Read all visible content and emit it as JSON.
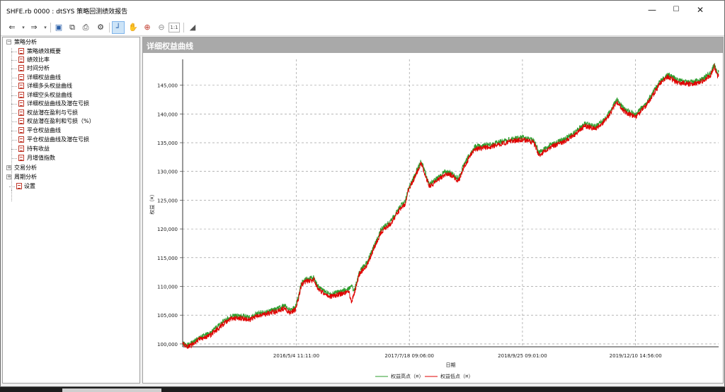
{
  "window": {
    "title": "SHFE.rb 0000 : dtSYS 策略回测绩效报告",
    "controls": {
      "minimize": "—",
      "maximize": "☐",
      "close": "✕"
    }
  },
  "toolbar": {
    "items": [
      {
        "name": "back-icon",
        "glyph": "⇐"
      },
      {
        "name": "back-dropdown-icon",
        "glyph": "▾"
      },
      {
        "name": "forward-icon",
        "glyph": "⇒"
      },
      {
        "name": "forward-dropdown-icon",
        "glyph": "▾"
      },
      {
        "name": "save-icon",
        "glyph": "▣"
      },
      {
        "name": "copy-icon",
        "glyph": "⧉"
      },
      {
        "name": "print-icon",
        "glyph": "⎙"
      },
      {
        "name": "settings-icon",
        "glyph": "⚙"
      },
      {
        "name": "cursor-select-icon",
        "glyph": "┘"
      },
      {
        "name": "pan-hand-icon",
        "glyph": "✋"
      },
      {
        "name": "zoom-in-icon",
        "glyph": "⊕"
      },
      {
        "name": "zoom-out-icon",
        "glyph": "⊖"
      },
      {
        "name": "zoom-actual-size-icon",
        "glyph": "1:1"
      },
      {
        "name": "zoom-fit-icon",
        "glyph": "◢"
      }
    ]
  },
  "tree": {
    "nodes": [
      {
        "label": "策略分析",
        "type": "group",
        "expanded": true
      },
      {
        "label": "策略绩效概要",
        "type": "report"
      },
      {
        "label": "绩效比率",
        "type": "report"
      },
      {
        "label": "时间分析",
        "type": "report"
      },
      {
        "label": "详细权益曲线",
        "type": "report",
        "selected": true
      },
      {
        "label": "详细多头权益曲线",
        "type": "report"
      },
      {
        "label": "详细空头权益曲线",
        "type": "report"
      },
      {
        "label": "详细权益曲线及潜在亏损",
        "type": "report"
      },
      {
        "label": "权益潜在盈利与亏损",
        "type": "report"
      },
      {
        "label": "权益潜在盈利和亏损（%）",
        "type": "report"
      },
      {
        "label": "平仓权益曲线",
        "type": "report"
      },
      {
        "label": "平仓权益曲线及潜在亏损",
        "type": "report"
      },
      {
        "label": "持有收益",
        "type": "report"
      },
      {
        "label": "月增值指数",
        "type": "report"
      },
      {
        "label": "交易分析",
        "type": "group",
        "expanded": false
      },
      {
        "label": "周期分析",
        "type": "group",
        "expanded": false
      },
      {
        "label": "设置",
        "type": "report"
      }
    ]
  },
  "chart_panel": {
    "header": "详细权益曲线"
  },
  "colors": {
    "equity_high": "#2e9e2e",
    "equity_low": "#e00000",
    "header_bg": "#a9a9a9"
  },
  "chart_data": {
    "type": "line",
    "xlabel": "日期",
    "ylabel": "权益（¤）",
    "ylim": [
      99500,
      149500
    ],
    "y_ticks": [
      100000,
      105000,
      110000,
      115000,
      120000,
      125000,
      130000,
      135000,
      140000,
      145000
    ],
    "y_tick_labels": [
      "100,000",
      "105,000",
      "110,000",
      "115,000",
      "120,000",
      "125,000",
      "130,000",
      "135,000",
      "140,000",
      "145,000"
    ],
    "x_range_index": [
      0,
      1000
    ],
    "x_ticks": [
      {
        "index": 212,
        "label": "2016/5/4 11:11:00"
      },
      {
        "index": 423,
        "label": "2017/7/18 09:06:00"
      },
      {
        "index": 634,
        "label": "2018/9/25 09:01:00"
      },
      {
        "index": 845,
        "label": "2019/12/10 14:56:00"
      }
    ],
    "grid": true,
    "legend_position": "bottom-center",
    "series": [
      {
        "name": "权益高点（¤）",
        "color": "#2e9e2e",
        "points": [
          [
            0,
            100000
          ],
          [
            10,
            99800
          ],
          [
            20,
            100300
          ],
          [
            30,
            101000
          ],
          [
            50,
            101800
          ],
          [
            60,
            102600
          ],
          [
            75,
            103800
          ],
          [
            90,
            104800
          ],
          [
            110,
            104900
          ],
          [
            125,
            104600
          ],
          [
            140,
            105300
          ],
          [
            165,
            105800
          ],
          [
            180,
            106200
          ],
          [
            190,
            106700
          ],
          [
            200,
            105800
          ],
          [
            210,
            106300
          ],
          [
            216,
            108300
          ],
          [
            222,
            110800
          ],
          [
            232,
            111300
          ],
          [
            245,
            111600
          ],
          [
            252,
            110100
          ],
          [
            262,
            109300
          ],
          [
            275,
            108600
          ],
          [
            295,
            109100
          ],
          [
            310,
            109600
          ],
          [
            315,
            110000
          ],
          [
            320,
            109200
          ],
          [
            330,
            112600
          ],
          [
            345,
            114300
          ],
          [
            355,
            116600
          ],
          [
            370,
            119800
          ],
          [
            390,
            121500
          ],
          [
            405,
            123800
          ],
          [
            415,
            124800
          ],
          [
            420,
            126800
          ],
          [
            430,
            128800
          ],
          [
            445,
            131800
          ],
          [
            460,
            127800
          ],
          [
            475,
            128800
          ],
          [
            490,
            130000
          ],
          [
            500,
            129800
          ],
          [
            515,
            128800
          ],
          [
            525,
            131300
          ],
          [
            545,
            134300
          ],
          [
            575,
            134700
          ],
          [
            610,
            135600
          ],
          [
            635,
            135900
          ],
          [
            655,
            135400
          ],
          [
            665,
            133300
          ],
          [
            690,
            134800
          ],
          [
            710,
            135500
          ],
          [
            730,
            136700
          ],
          [
            750,
            138300
          ],
          [
            770,
            137800
          ],
          [
            790,
            139300
          ],
          [
            810,
            142500
          ],
          [
            825,
            140700
          ],
          [
            845,
            139900
          ],
          [
            865,
            141800
          ],
          [
            890,
            145600
          ],
          [
            905,
            146800
          ],
          [
            925,
            145800
          ],
          [
            945,
            145600
          ],
          [
            965,
            145800
          ],
          [
            985,
            147100
          ],
          [
            992,
            148700
          ],
          [
            998,
            146800
          ],
          [
            1000,
            147300
          ]
        ]
      },
      {
        "name": "权益低点（¤）",
        "color": "#e00000",
        "points": [
          [
            0,
            100000
          ],
          [
            10,
            99500
          ],
          [
            20,
            100000
          ],
          [
            30,
            100700
          ],
          [
            50,
            101400
          ],
          [
            60,
            102200
          ],
          [
            75,
            103400
          ],
          [
            90,
            104400
          ],
          [
            110,
            104500
          ],
          [
            125,
            104200
          ],
          [
            140,
            104900
          ],
          [
            165,
            105400
          ],
          [
            180,
            105800
          ],
          [
            190,
            106200
          ],
          [
            200,
            105400
          ],
          [
            210,
            105900
          ],
          [
            216,
            107900
          ],
          [
            222,
            110400
          ],
          [
            232,
            110900
          ],
          [
            245,
            111200
          ],
          [
            252,
            109700
          ],
          [
            262,
            108900
          ],
          [
            275,
            108200
          ],
          [
            295,
            108700
          ],
          [
            310,
            109100
          ],
          [
            315,
            107200
          ],
          [
            320,
            108800
          ],
          [
            330,
            112200
          ],
          [
            345,
            113900
          ],
          [
            355,
            116200
          ],
          [
            370,
            119400
          ],
          [
            390,
            121100
          ],
          [
            405,
            123400
          ],
          [
            415,
            124300
          ],
          [
            420,
            126400
          ],
          [
            430,
            128400
          ],
          [
            445,
            131400
          ],
          [
            460,
            127400
          ],
          [
            475,
            128400
          ],
          [
            490,
            129500
          ],
          [
            500,
            129400
          ],
          [
            515,
            128400
          ],
          [
            525,
            130900
          ],
          [
            545,
            133900
          ],
          [
            575,
            134300
          ],
          [
            610,
            135200
          ],
          [
            635,
            135500
          ],
          [
            655,
            135000
          ],
          [
            665,
            132800
          ],
          [
            690,
            134400
          ],
          [
            710,
            135100
          ],
          [
            730,
            136300
          ],
          [
            750,
            137900
          ],
          [
            770,
            137400
          ],
          [
            790,
            138900
          ],
          [
            810,
            142100
          ],
          [
            825,
            140300
          ],
          [
            845,
            139500
          ],
          [
            865,
            141400
          ],
          [
            890,
            145200
          ],
          [
            905,
            146400
          ],
          [
            925,
            145400
          ],
          [
            945,
            145200
          ],
          [
            965,
            145400
          ],
          [
            985,
            146700
          ],
          [
            992,
            148300
          ],
          [
            998,
            146400
          ],
          [
            1000,
            146900
          ]
        ]
      }
    ]
  }
}
